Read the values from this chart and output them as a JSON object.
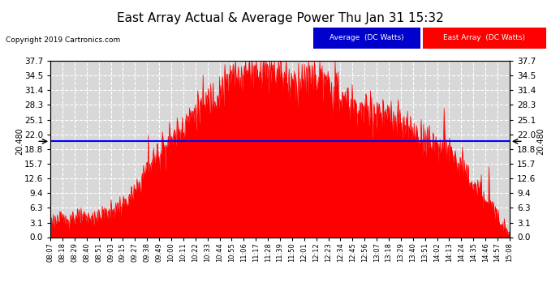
{
  "title": "East Array Actual & Average Power Thu Jan 31 15:32",
  "copyright_text": "Copyright 2019 Cartronics.com",
  "avg_line_value": 20.48,
  "avg_line_label": "20.480",
  "yticks": [
    0.0,
    3.1,
    6.3,
    9.4,
    12.6,
    15.7,
    18.8,
    22.0,
    25.1,
    28.3,
    31.4,
    34.5,
    37.7
  ],
  "ylim": [
    0.0,
    37.7
  ],
  "fill_color": "#ff0000",
  "avg_line_color": "#0000ff",
  "bg_color": "#ffffff",
  "plot_bg_color": "#d8d8d8",
  "grid_color": "#ffffff",
  "title_fontsize": 11,
  "legend_avg_label": "Average  (DC Watts)",
  "legend_east_label": "East Array  (DC Watts)",
  "legend_avg_bg": "#0000cc",
  "legend_east_bg": "#ff0000",
  "xtick_labels": [
    "08:07",
    "08:18",
    "08:29",
    "08:40",
    "08:51",
    "09:03",
    "09:15",
    "09:27",
    "09:38",
    "09:49",
    "10:00",
    "10:11",
    "10:22",
    "10:33",
    "10:44",
    "10:55",
    "11:06",
    "11:17",
    "11:28",
    "11:39",
    "11:50",
    "12:01",
    "12:12",
    "12:23",
    "12:34",
    "12:45",
    "12:56",
    "13:07",
    "13:18",
    "13:29",
    "13:40",
    "13:51",
    "14:02",
    "14:13",
    "14:24",
    "14:35",
    "14:46",
    "14:57",
    "15:08"
  ],
  "peak_profile": [
    3.5,
    3.8,
    4.2,
    4.0,
    4.5,
    5.5,
    7.0,
    9.5,
    15.0,
    18.0,
    21.0,
    24.0,
    27.0,
    29.0,
    31.5,
    34.0,
    35.5,
    36.5,
    36.0,
    35.8,
    33.0,
    33.5,
    34.5,
    32.0,
    30.0,
    28.5,
    27.0,
    26.5,
    25.5,
    24.0,
    22.5,
    21.0,
    20.0,
    18.5,
    15.0,
    11.0,
    8.0,
    5.0,
    0.5
  ]
}
